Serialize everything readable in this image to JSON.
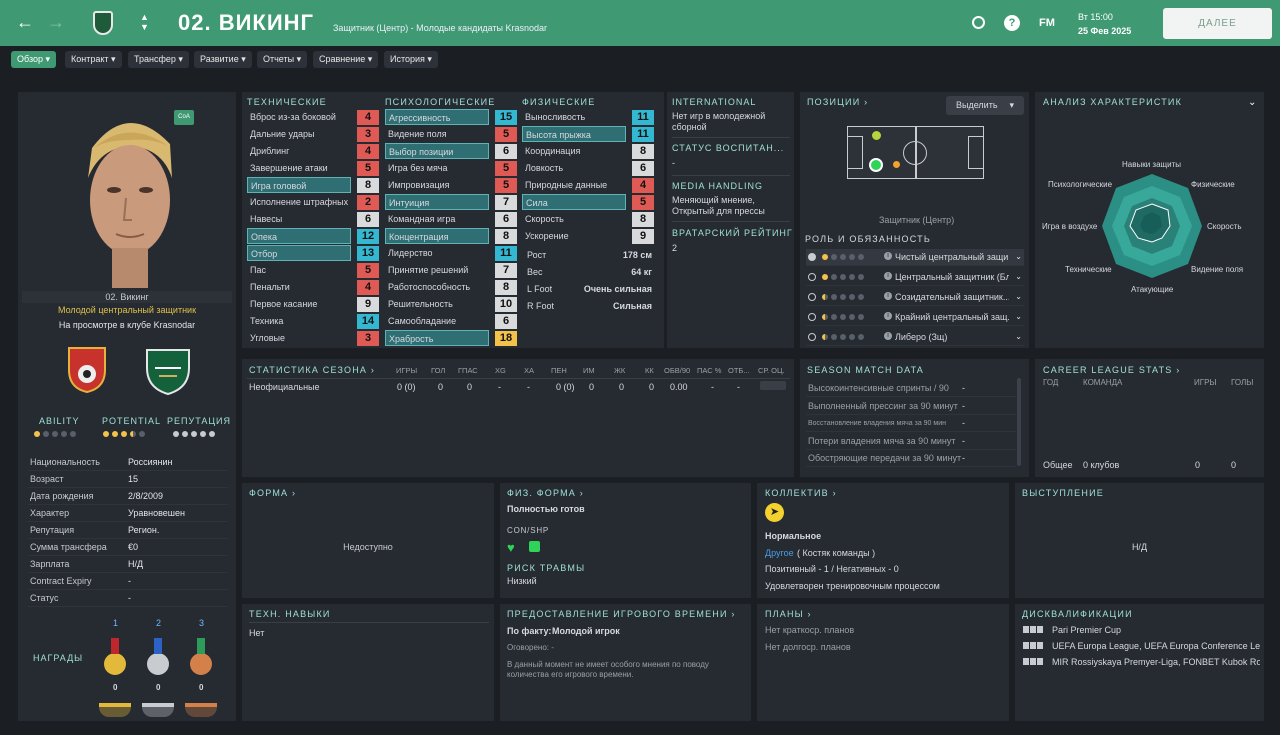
{
  "header": {
    "title": "02. ВИКИНГ",
    "subtitle": "Защитник (Центр) - Молодые кандидаты Krasnodar",
    "fm_logo": "FM",
    "date_top": "Вт 15:00",
    "date_bottom": "25 Фев 2025",
    "continue_label": "ДАЛЕЕ"
  },
  "menu": [
    "Обзор",
    "Контракт",
    "Трансфер",
    "Развитие",
    "Отчеты",
    "Сравнение",
    "История"
  ],
  "player": {
    "name_line": "02. Викинг",
    "role_line": "Молодой центральный защитник",
    "loan_line": "На просмотре в клубе Krasnodar",
    "badge": "CoA",
    "ability_label": "ABILITY",
    "potential_label": "POTENTIAL",
    "reputation_label": "РЕПУТАЦИЯ"
  },
  "info": [
    {
      "k": "Национальность",
      "v": "Россиянин"
    },
    {
      "k": "Возраст",
      "v": "15"
    },
    {
      "k": "Дата рождения",
      "v": "2/8/2009"
    },
    {
      "k": "Характер",
      "v": "Уравновешен"
    },
    {
      "k": "Репутация",
      "v": "Регион."
    },
    {
      "k": "Сумма трансфера",
      "v": "€0"
    },
    {
      "k": "Зарплата",
      "v": "Н/Д"
    },
    {
      "k": "Contract Expiry",
      "v": "-"
    },
    {
      "k": "Статус",
      "v": "-"
    }
  ],
  "awards": {
    "label": "НАГРАДЫ",
    "places": [
      "1",
      "2",
      "3"
    ],
    "counts": [
      "0",
      "0",
      "0"
    ]
  },
  "attributes": {
    "tech_title": "ТЕХНИЧЕСКИЕ",
    "mental_title": "ПСИХОЛОГИЧЕСКИЕ",
    "phys_title": "ФИЗИЧЕСКИЕ",
    "technical": [
      {
        "n": "Вброс из-за боковой",
        "v": "4",
        "c": "red",
        "hl": false
      },
      {
        "n": "Дальние удары",
        "v": "3",
        "c": "red",
        "hl": false
      },
      {
        "n": "Дриблинг",
        "v": "4",
        "c": "red",
        "hl": false
      },
      {
        "n": "Завершение атаки",
        "v": "5",
        "c": "red",
        "hl": false
      },
      {
        "n": "Игра головой",
        "v": "8",
        "c": "white",
        "hl": true
      },
      {
        "n": "Исполнение штрафных",
        "v": "2",
        "c": "red",
        "hl": false
      },
      {
        "n": "Навесы",
        "v": "6",
        "c": "white",
        "hl": false
      },
      {
        "n": "Опека",
        "v": "12",
        "c": "cyan",
        "hl": true
      },
      {
        "n": "Отбор",
        "v": "13",
        "c": "cyan",
        "hl": true
      },
      {
        "n": "Пас",
        "v": "5",
        "c": "red",
        "hl": false
      },
      {
        "n": "Пенальти",
        "v": "4",
        "c": "red",
        "hl": false
      },
      {
        "n": "Первое касание",
        "v": "9",
        "c": "white",
        "hl": false
      },
      {
        "n": "Техника",
        "v": "14",
        "c": "cyan",
        "hl": false
      },
      {
        "n": "Угловые",
        "v": "3",
        "c": "red",
        "hl": false
      }
    ],
    "mental": [
      {
        "n": "Агрессивность",
        "v": "15",
        "c": "cyan",
        "hl": true
      },
      {
        "n": "Видение поля",
        "v": "5",
        "c": "red",
        "hl": false
      },
      {
        "n": "Выбор позиции",
        "v": "6",
        "c": "white",
        "hl": true
      },
      {
        "n": "Игра без мяча",
        "v": "5",
        "c": "red",
        "hl": false
      },
      {
        "n": "Импровизация",
        "v": "5",
        "c": "red",
        "hl": false
      },
      {
        "n": "Интуиция",
        "v": "7",
        "c": "white",
        "hl": true
      },
      {
        "n": "Командная игра",
        "v": "6",
        "c": "white",
        "hl": false
      },
      {
        "n": "Концентрация",
        "v": "8",
        "c": "white",
        "hl": true
      },
      {
        "n": "Лидерство",
        "v": "11",
        "c": "cyan",
        "hl": false
      },
      {
        "n": "Принятие решений",
        "v": "7",
        "c": "white",
        "hl": false
      },
      {
        "n": "Работоспособность",
        "v": "8",
        "c": "white",
        "hl": false
      },
      {
        "n": "Решительность",
        "v": "10",
        "c": "white",
        "hl": false
      },
      {
        "n": "Самообладание",
        "v": "6",
        "c": "white",
        "hl": false
      },
      {
        "n": "Храбрость",
        "v": "18",
        "c": "yellow",
        "hl": true
      }
    ],
    "physical": [
      {
        "n": "Выносливость",
        "v": "11",
        "c": "cyan",
        "hl": false
      },
      {
        "n": "Высота прыжка",
        "v": "11",
        "c": "cyan",
        "hl": true
      },
      {
        "n": "Координация",
        "v": "8",
        "c": "white",
        "hl": false
      },
      {
        "n": "Ловкость",
        "v": "6",
        "c": "white",
        "hl": false
      },
      {
        "n": "Природные данные",
        "v": "4",
        "c": "red",
        "hl": false
      },
      {
        "n": "Сила",
        "v": "5",
        "c": "red",
        "hl": true
      },
      {
        "n": "Скорость",
        "v": "8",
        "c": "white",
        "hl": false
      },
      {
        "n": "Ускорение",
        "v": "9",
        "c": "white",
        "hl": false
      }
    ],
    "extra": [
      {
        "k": "Рост",
        "v": "178 см"
      },
      {
        "k": "Вес",
        "v": "64 кг"
      },
      {
        "k": "L Foot",
        "v": "Очень сильная"
      },
      {
        "k": "R Foot",
        "v": "Сильная"
      }
    ]
  },
  "side_info": {
    "international_title": "INTERNATIONAL",
    "international_text": [
      "Нет игр в молодежной",
      "сборной"
    ],
    "upbringing_title": "СТАТУС ВОСПИТАН...",
    "upbringing_value": "-",
    "media_title": "MEDIA HANDLING",
    "media_text": [
      "Меняющий мнение,",
      "Открытый для прессы"
    ],
    "gk_title": "ВРАТАРСКИЙ РЕЙТИНГ",
    "gk_value": "2"
  },
  "positions": {
    "title": "ПОЗИЦИИ",
    "select_label": "Выделить",
    "caption": "Защитник (Центр)",
    "roles_title": "РОЛЬ И ОБЯЗАННОСТЬ",
    "roles": [
      {
        "name": "Чистый центральный защи...",
        "stars": 1
      },
      {
        "name": "Центральный защитник (Бл)",
        "stars": 1
      },
      {
        "name": "Созидательный защитник...",
        "stars": 0.5
      },
      {
        "name": "Крайний центральный защ...",
        "stars": 0.5
      },
      {
        "name": "Либеро (Зщ)",
        "stars": 0.5
      }
    ]
  },
  "radar": {
    "title": "АНАЛИЗ ХАРАКТЕРИСТИК",
    "labels": [
      "Навыки защиты",
      "Физические",
      "Скорость",
      "Видение поля",
      "Атакующие",
      "Технические",
      "Игра в воздухе",
      "Психологические"
    ]
  },
  "season": {
    "title": "СТАТИСТИКА СЕЗОНА",
    "cols": [
      "ИГРЫ",
      "ГОЛ",
      "ГПАС",
      "XG",
      "XA",
      "ПЕН",
      "ИМ",
      "ЖК",
      "КК",
      "ОБВ/90",
      "ПАС %",
      "ОТБ...",
      "СР. ОЦ."
    ],
    "row": [
      "Неофициальные",
      "0 (0)",
      "0",
      "0",
      "-",
      "-",
      "0 (0)",
      "0",
      "0",
      "0",
      "0.00",
      "-",
      "-",
      "-"
    ]
  },
  "season_match": {
    "title": "SEASON MATCH DATA",
    "rows": [
      {
        "k": "Высокоинтенсивные спринты / 90",
        "v": "-"
      },
      {
        "k": "Выполненный прессинг за 90 минут",
        "v": "-"
      },
      {
        "k": "Восстановление владения мяча за 90 мин",
        "v": "-"
      },
      {
        "k": "Потери владения мяча за 90 минут",
        "v": "-"
      },
      {
        "k": "Обостряющие передачи за 90 минут",
        "v": "-"
      }
    ]
  },
  "career": {
    "title": "CAREER LEAGUE STATS",
    "cols": [
      "ГОД",
      "КОМАНДА",
      "ИГРЫ",
      "ГОЛЫ"
    ],
    "total": [
      "Общее",
      "0 клубов",
      "0",
      "0"
    ]
  },
  "form": {
    "title": "ФОРМА",
    "value": "Недоступно"
  },
  "fitness": {
    "title": "ФИЗ. ФОРМА",
    "value": "Полностью готов",
    "con_label": "CON/SHP",
    "injury_title": "РИСК ТРАВМЫ",
    "injury_value": "Низкий"
  },
  "team": {
    "title": "КОЛЛЕКТИВ",
    "mood": "Нормальное",
    "group_link": "Другое",
    "group_text": "( Костяк команды )",
    "rel": "Позитивный - 1 / Негативных - 0",
    "training": "Удовлетворен тренировочным процессом"
  },
  "performance": {
    "title": "ВЫСТУПЛЕНИЕ",
    "value": "Н/Д"
  },
  "tech_skills": {
    "title": "ТЕХН. НАВЫКИ",
    "value": "Нет"
  },
  "playtime": {
    "title": "ПРЕДОСТАВЛЕНИЕ ИГРОВОГО ВРЕМЕНИ",
    "fact_label": "По факту:",
    "fact_value": "Молодой игрок",
    "agreed": "Оговорено: -",
    "note": [
      "В данный момент не имеет особого мнения по поводу",
      "количества его игрового времени."
    ]
  },
  "plans": {
    "title": "ПЛАНЫ",
    "short": "Нет краткоср. планов",
    "long": "Нет долгоср. планов"
  },
  "bans": {
    "title": "ДИСКВАЛИФИКАЦИИ",
    "rows": [
      "Pari Premier Cup",
      "UEFA Europa League, UEFA Europa Conference Le...",
      "MIR Rossiyskaya Premyer-Liga, FONBET Kubok Rossii"
    ]
  },
  "colors": {
    "accent": "#3f9a73",
    "panel": "#262a31",
    "title": "#9ee0d6"
  }
}
